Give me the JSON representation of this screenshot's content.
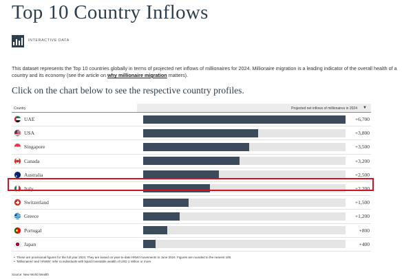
{
  "page": {
    "title": "Top 10 Country Inflows",
    "badge_label": "INTERACTIVE DATA",
    "description_before": "This dataset represents the Top 10 countries globally in terms of projected net inflows of millionaires for 2024. Millionaire migration is a leading indicator of the overall health of a country and its economy (see the article on ",
    "description_link": "why millionaire migration",
    "description_after": " matters).",
    "subtitle": "Click on the chart below to see the respective country profiles."
  },
  "table": {
    "col_country": "Country",
    "col_value": "Projected net inflows of millionaires in 2024",
    "sort_icon": "▼",
    "max_value": 6700,
    "bar_color": "#3c4b5c",
    "highlight_color": "#d7101e",
    "highlighted_row": "Italy",
    "rows": [
      {
        "country": "UAE",
        "label": "+6,700",
        "value": 6700,
        "flag": "uae-flag-icon"
      },
      {
        "country": "USA",
        "label": "+3,800",
        "value": 3800,
        "flag": "usa-flag-icon"
      },
      {
        "country": "Singapore",
        "label": "+3,500",
        "value": 3500,
        "flag": "singapore-flag-icon"
      },
      {
        "country": "Canada",
        "label": "+3,200",
        "value": 3200,
        "flag": "canada-flag-icon"
      },
      {
        "country": "Australia",
        "label": "+2,500",
        "value": 2500,
        "flag": "australia-flag-icon"
      },
      {
        "country": "Italy",
        "label": "+2,200",
        "value": 2200,
        "flag": "italy-flag-icon"
      },
      {
        "country": "Switzerland",
        "label": "+1,500",
        "value": 1500,
        "flag": "switzerland-flag-icon"
      },
      {
        "country": "Greece",
        "label": "+1,200",
        "value": 1200,
        "flag": "greece-flag-icon"
      },
      {
        "country": "Portugal",
        "label": "+800",
        "value": 800,
        "flag": "portugal-flag-icon"
      },
      {
        "country": "Japan",
        "label": "+400",
        "value": 400,
        "flag": "japan-flag-icon"
      }
    ]
  },
  "notes": [
    "These are provisional figures for the full year 2024. They are based on year-to-date HNWI movements to June 2024. Figures are rounded to the nearest 100.",
    "'Millionaires' and 'HNWIs' refer to individuals with liquid investable wealth of USD 1 million or more."
  ],
  "source": "Source: New World Wealth"
}
